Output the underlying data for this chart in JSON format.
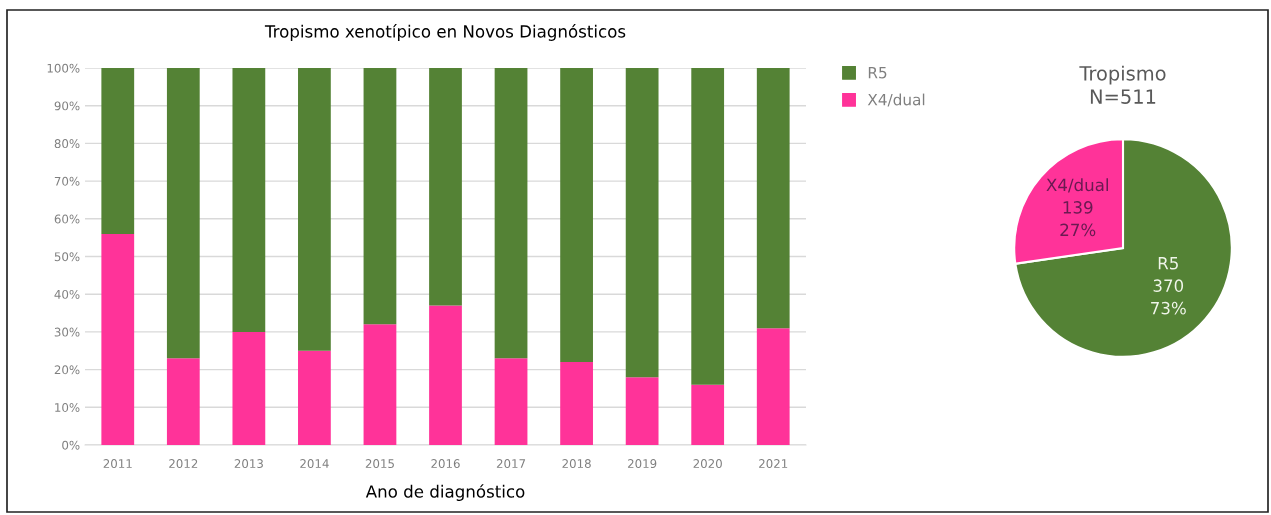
{
  "chart_data": [
    {
      "type": "bar",
      "title": "Tropismo xenotípico en Novos Diagnósticos",
      "xlabel": "Ano de diagnóstico",
      "categories": [
        "2011",
        "2012",
        "2013",
        "2014",
        "2015",
        "2016",
        "2017",
        "2018",
        "2019",
        "2020",
        "2021"
      ],
      "series": [
        {
          "name": "X4/dual",
          "color": "#ff3399",
          "values": [
            56,
            23,
            30,
            25,
            32,
            37,
            23,
            22,
            18,
            16,
            31
          ]
        },
        {
          "name": "R5",
          "color": "#548235",
          "values": [
            44,
            77,
            70,
            75,
            68,
            63,
            77,
            78,
            82,
            84,
            69
          ]
        }
      ],
      "stacked": true,
      "ylim": [
        0,
        100
      ],
      "yticks": [
        {
          "value": 0,
          "label": "0%"
        },
        {
          "value": 10,
          "label": "10%"
        },
        {
          "value": 20,
          "label": "20%"
        },
        {
          "value": 30,
          "label": "30%"
        },
        {
          "value": 40,
          "label": "40%"
        },
        {
          "value": 50,
          "label": "50%"
        },
        {
          "value": 60,
          "label": "60%"
        },
        {
          "value": 70,
          "label": "70%"
        },
        {
          "value": 80,
          "label": "80%"
        },
        {
          "value": 90,
          "label": "90%"
        },
        {
          "value": 100,
          "label": "100%"
        }
      ],
      "grid": "y",
      "legend": "right"
    },
    {
      "type": "pie",
      "title": "Tropismo\nN=511",
      "categories": [
        "R5",
        "X4/dual"
      ],
      "values": [
        370,
        139
      ],
      "colors": [
        "#548235",
        "#ff3399"
      ],
      "value_labels": [
        "370\n73%",
        "139\n27%"
      ]
    }
  ]
}
